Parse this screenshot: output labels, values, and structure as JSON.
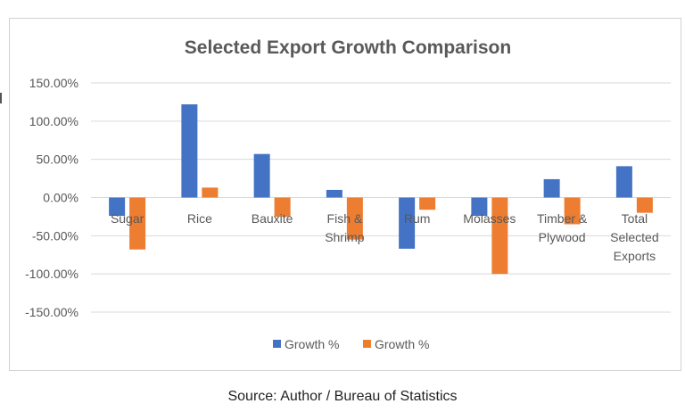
{
  "colors": {
    "series1": "#4472C4",
    "series2": "#ED7D31",
    "grid": "#d9d9d9",
    "text": "#595959"
  },
  "source": "Source: Author / Bureau of Statistics",
  "chart_data": {
    "type": "bar",
    "title": "Selected Export Growth Comparison",
    "categories": [
      [
        "Sugar"
      ],
      [
        "Rice"
      ],
      [
        "Bauxite"
      ],
      [
        "Fish &",
        "Shrimp"
      ],
      [
        "Rum"
      ],
      [
        "Molasses"
      ],
      [
        "Timber &",
        "Plywood"
      ],
      [
        "Total",
        "Selected",
        "Exports"
      ]
    ],
    "series": [
      {
        "name": "Growth %",
        "values": [
          -24,
          122,
          57,
          10,
          -67,
          -24,
          24,
          41
        ]
      },
      {
        "name": "Growth %",
        "values": [
          -68,
          13,
          -25,
          -55,
          -16,
          -100,
          -35,
          -20
        ]
      }
    ],
    "ylim": [
      -150,
      150
    ],
    "yticks": [
      150,
      100,
      50,
      0,
      -50,
      -100,
      -150
    ],
    "ytick_labels": [
      "150.00%",
      "100.00%",
      "50.00%",
      "0.00%",
      "-50.00%",
      "-100.00%",
      "-150.00%"
    ],
    "grid": true,
    "legend": "bottom"
  }
}
